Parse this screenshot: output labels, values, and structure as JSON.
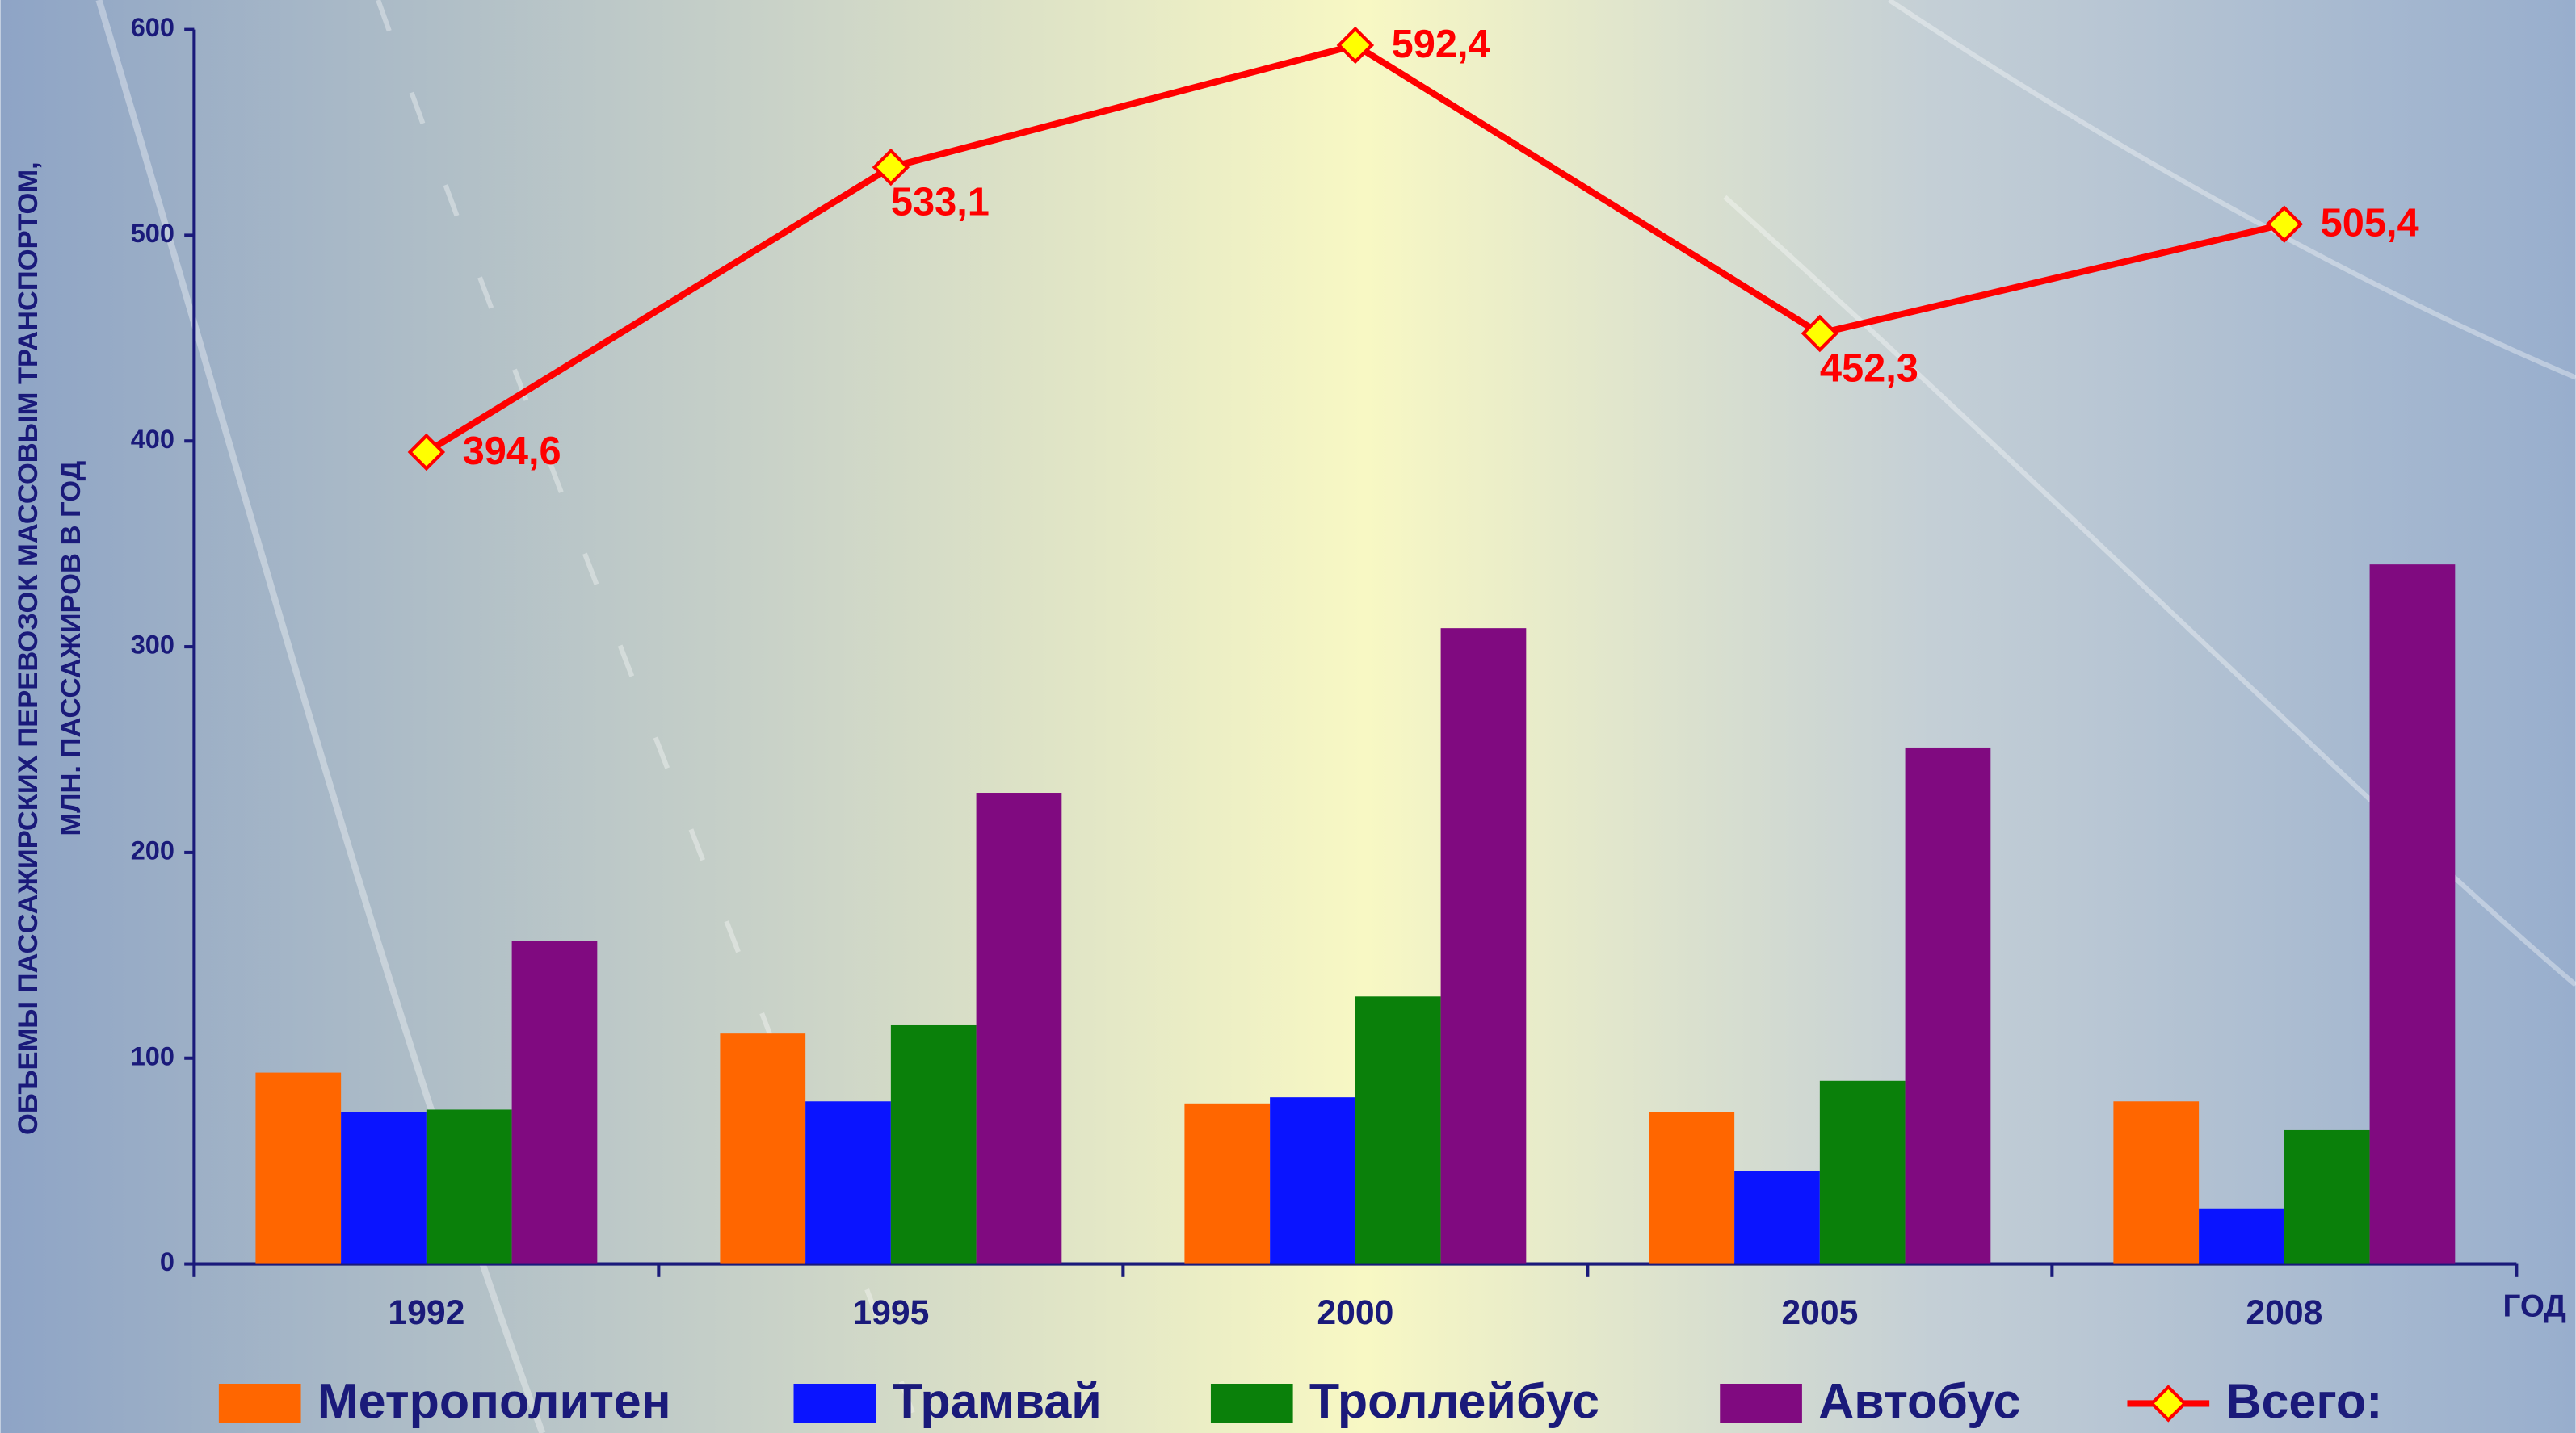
{
  "chart_data": {
    "type": "bar",
    "y_label": [
      "ОБЪЕМЫ ПАССАЖИРСКИХ ПЕРЕВОЗОК МАССОВЫМ ТРАНСПОРТОМ,",
      "МЛН. ПАССАЖИРОВ В ГОД"
    ],
    "x_label": "ГОД",
    "categories": [
      "1992",
      "1995",
      "2000",
      "2005",
      "2008"
    ],
    "series": [
      {
        "name": "Метрополитен",
        "color": "#ff6600",
        "values": [
          93,
          112,
          78,
          74,
          79
        ]
      },
      {
        "name": "Трамвай",
        "color": "#0a14ff",
        "values": [
          74,
          79,
          81,
          45,
          27
        ]
      },
      {
        "name": "Троллейбус",
        "color": "#0a800a",
        "values": [
          75,
          116,
          130,
          89,
          65
        ]
      },
      {
        "name": "Автобус",
        "color": "#800a80",
        "values": [
          157,
          229,
          309,
          251,
          340
        ]
      },
      {
        "name": "Всего:",
        "color": "#ff0000",
        "type": "line",
        "marker_color": "#ffff00",
        "values": [
          394.6,
          533.1,
          592.4,
          452.3,
          505.4
        ],
        "value_labels": [
          "394,6",
          "533,1",
          "592,4",
          "452,3",
          "505,4"
        ]
      }
    ],
    "ylim": [
      0,
      600
    ],
    "yticks": [
      0,
      100,
      200,
      300,
      400,
      500,
      600
    ]
  }
}
